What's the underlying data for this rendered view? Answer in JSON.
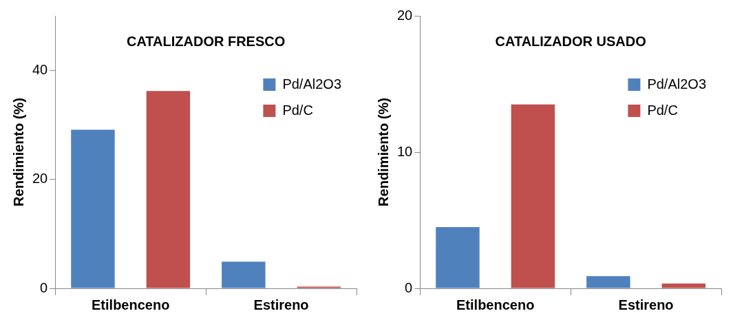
{
  "chart_data": [
    {
      "type": "bar",
      "title": "CATALIZADOR FRESCO",
      "ylabel": "Rendimiento (%)",
      "categories": [
        "Etilbenceno",
        "Estireno"
      ],
      "series": [
        {
          "name": "Pd/Al2O3",
          "color": "#4f81bd",
          "values": [
            29.1,
            4.9
          ]
        },
        {
          "name": "Pd/C",
          "color": "#c0504d",
          "values": [
            36.2,
            0.3
          ]
        }
      ],
      "ylim": [
        0,
        50
      ],
      "yticks": [
        0,
        20,
        40
      ],
      "grid": false,
      "legend": "top right"
    },
    {
      "type": "bar",
      "title": "CATALIZADOR USADO",
      "ylabel": "Rendimiento (%)",
      "categories": [
        "Etilbenceno",
        "Estireno"
      ],
      "series": [
        {
          "name": "Pd/Al2O3",
          "color": "#4f81bd",
          "values": [
            4.5,
            0.9
          ]
        },
        {
          "name": "Pd/C",
          "color": "#c0504d",
          "values": [
            13.5,
            0.35
          ]
        }
      ],
      "ylim": [
        0,
        20
      ],
      "yticks": [
        0,
        10,
        20
      ],
      "grid": false,
      "legend": "top right"
    }
  ]
}
